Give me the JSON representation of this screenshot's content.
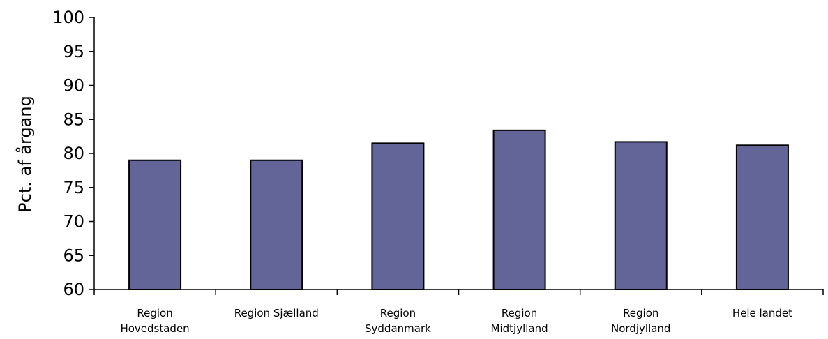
{
  "chart_data": {
    "type": "bar",
    "title": "",
    "xlabel": "",
    "ylabel": "Pct. af årgang",
    "ylim": [
      60,
      100
    ],
    "yticks": [
      60,
      65,
      70,
      75,
      80,
      85,
      90,
      95,
      100
    ],
    "grid": false,
    "legend": "none",
    "bar_color": "#636599",
    "categories": [
      [
        "Region",
        "Hovedstaden"
      ],
      [
        "Region Sjælland"
      ],
      [
        "Region",
        "Syddanmark"
      ],
      [
        "Region",
        "Midtjylland"
      ],
      [
        "Region",
        "Nordjylland"
      ],
      [
        "Hele landet"
      ]
    ],
    "values": [
      79.0,
      79.0,
      81.5,
      83.4,
      81.7,
      81.2
    ]
  }
}
